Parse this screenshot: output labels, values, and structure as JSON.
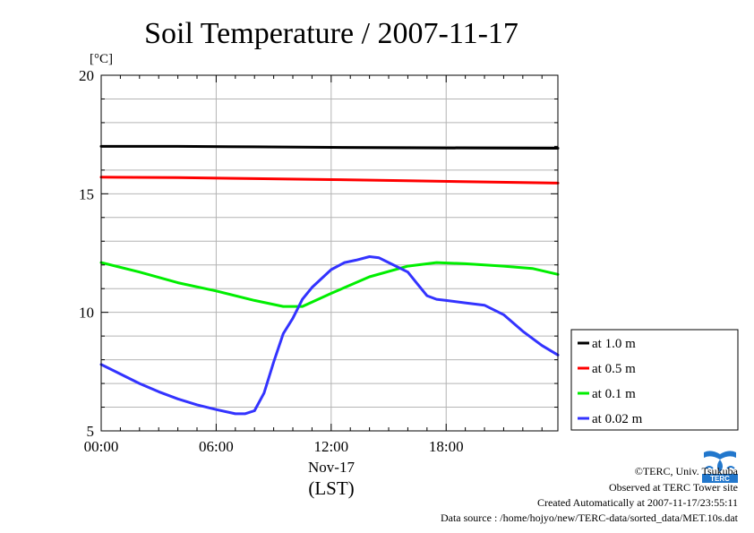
{
  "chart_data": {
    "type": "line",
    "title": "Soil Temperature / 2007-11-17",
    "yunit": "[°C]",
    "xlabel": "Nov-17",
    "xlabel2": "(LST)",
    "xlim": [
      0,
      23.83
    ],
    "ylim": [
      5,
      20
    ],
    "xticks": [
      {
        "value": 0,
        "label": "00:00"
      },
      {
        "value": 6,
        "label": "06:00"
      },
      {
        "value": 12,
        "label": "12:00"
      },
      {
        "value": 18,
        "label": "18:00"
      }
    ],
    "yticks": [
      5,
      10,
      15,
      20
    ],
    "yminor_step": 1,
    "xminor_step": 1,
    "grid": true,
    "legend_position": "right-bottom",
    "series": [
      {
        "name": "at 1.0 m",
        "color": "#000000",
        "x": [
          0,
          4,
          8,
          12,
          16,
          20,
          23.83
        ],
        "y": [
          17.0,
          17.0,
          16.98,
          16.96,
          16.94,
          16.93,
          16.92
        ]
      },
      {
        "name": "at 0.5 m",
        "color": "#ff0000",
        "x": [
          0,
          4,
          8,
          12,
          16,
          20,
          23.83
        ],
        "y": [
          15.7,
          15.68,
          15.64,
          15.6,
          15.55,
          15.5,
          15.45
        ]
      },
      {
        "name": "at 0.1 m",
        "color": "#00ee00",
        "x": [
          0,
          2,
          4,
          6,
          8,
          9.5,
          10.5,
          12,
          14,
          16,
          17.5,
          19,
          21,
          22.5,
          23.83
        ],
        "y": [
          12.1,
          11.7,
          11.25,
          10.9,
          10.5,
          10.25,
          10.25,
          10.8,
          11.5,
          11.95,
          12.1,
          12.05,
          11.95,
          11.85,
          11.6
        ]
      },
      {
        "name": "at 0.02 m",
        "color": "#3333ff",
        "x": [
          0,
          1,
          2,
          3,
          4,
          5,
          6,
          7,
          7.5,
          8,
          8.5,
          9,
          9.5,
          10,
          10.5,
          11,
          12,
          12.7,
          13.3,
          14,
          14.5,
          15,
          16,
          16.5,
          17,
          17.5,
          18,
          19,
          20,
          21,
          22,
          23,
          23.83
        ],
        "y": [
          7.8,
          7.4,
          7.0,
          6.65,
          6.35,
          6.1,
          5.9,
          5.72,
          5.72,
          5.85,
          6.6,
          7.9,
          9.1,
          9.75,
          10.55,
          11.05,
          11.8,
          12.1,
          12.2,
          12.35,
          12.3,
          12.1,
          11.7,
          11.2,
          10.7,
          10.55,
          10.5,
          10.4,
          10.3,
          9.9,
          9.2,
          8.6,
          8.2
        ]
      }
    ]
  },
  "credits": {
    "copyright": "©TERC, Univ. Tsukuba",
    "observed": "Observed at TERC Tower site",
    "created": "Created Automatically at 2007-11-17/23:55:11",
    "source": "Data source : /home/hojyo/new/TERC-data/sorted_data/MET.10s.dat"
  },
  "logo": {
    "text": "TERC",
    "color": "#2277cc",
    "icon": "terc-logo-icon"
  }
}
